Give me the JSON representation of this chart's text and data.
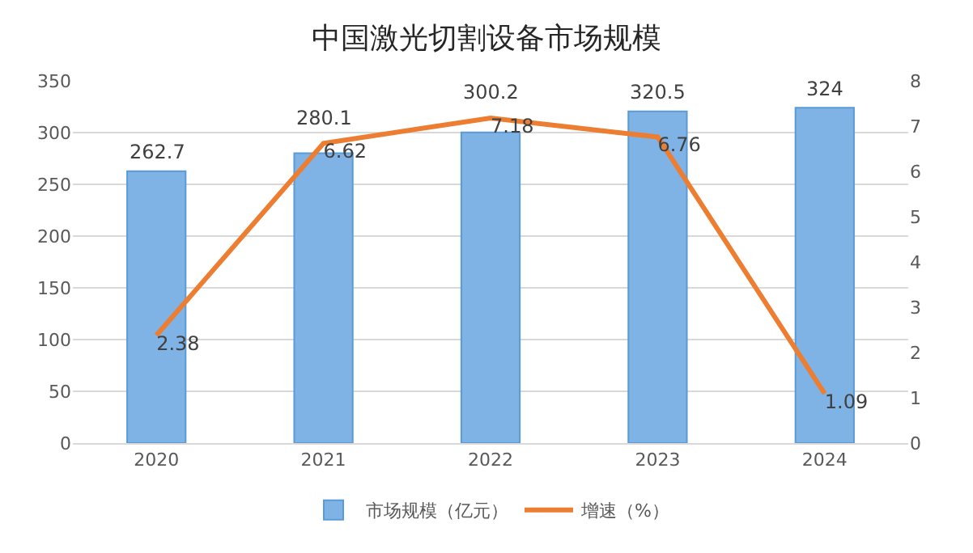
{
  "chart_data": {
    "type": "bar",
    "title": "中国激光切割设备市场规模",
    "categories": [
      "2020",
      "2021",
      "2022",
      "2023",
      "2024"
    ],
    "series": [
      {
        "name": "市场规模（亿元）",
        "color": "#7fb3e6",
        "values": [
          262.7,
          280.1,
          300.2,
          320.5,
          324
        ]
      },
      {
        "name": "增速（%）",
        "type": "line",
        "axis": "y2",
        "color": "#ed7d31",
        "values": [
          2.38,
          6.62,
          7.18,
          6.76,
          1.09
        ]
      }
    ],
    "ylim": [
      0,
      350
    ],
    "yticks": [
      0,
      50,
      100,
      150,
      200,
      250,
      300,
      350
    ],
    "y2lim": [
      0,
      8
    ],
    "y2ticks": [
      0,
      1,
      2,
      3,
      4,
      5,
      6,
      7,
      8
    ],
    "grid": "y",
    "legend": "bottom",
    "data_labels": true,
    "marker": "none",
    "line_style": "solid"
  }
}
